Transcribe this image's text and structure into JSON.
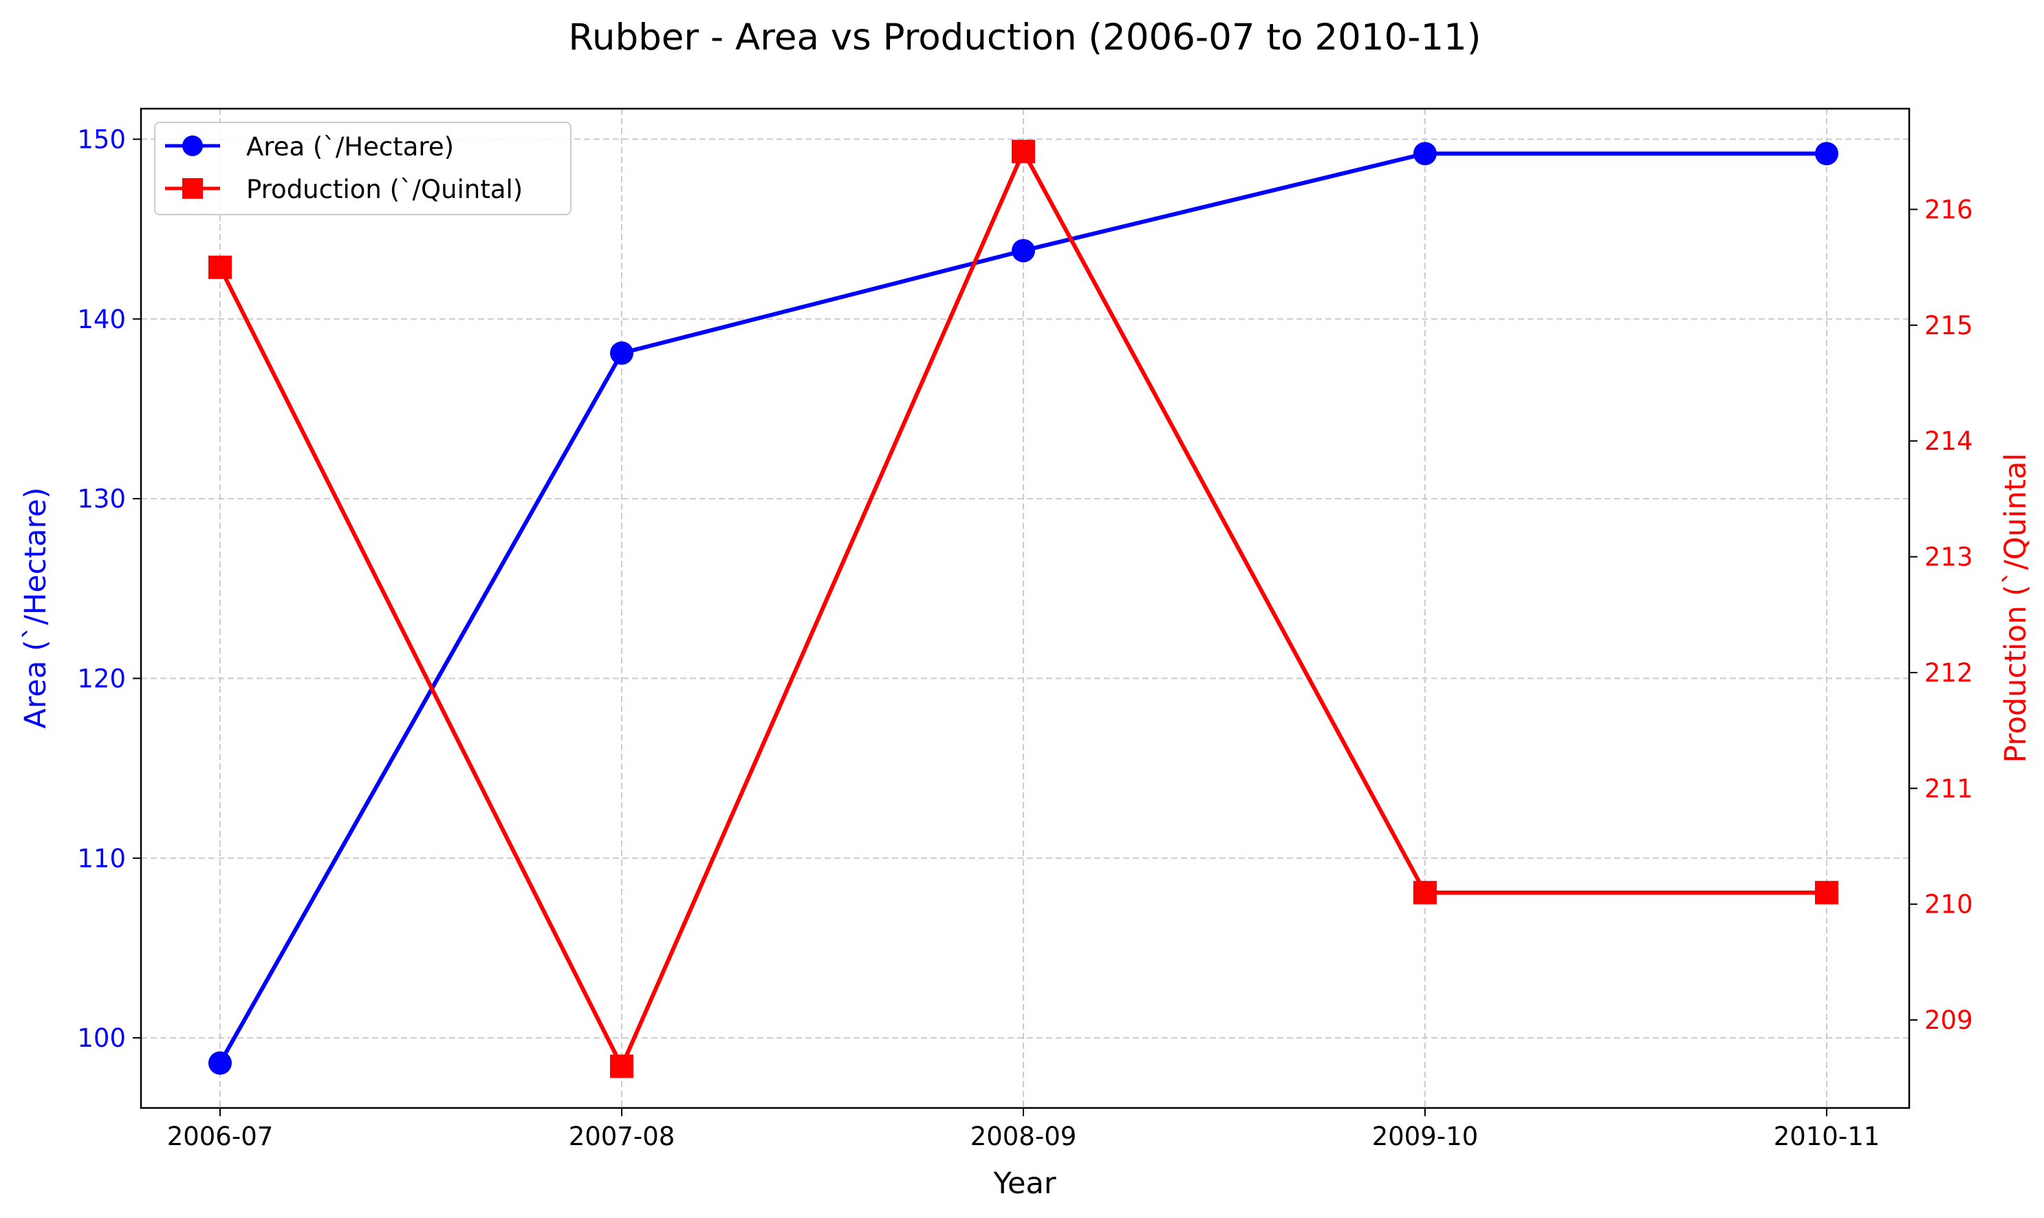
{
  "chart_data": {
    "type": "line",
    "title": "Rubber  - Area vs Production (2006-07 to 2010-11)",
    "xlabel": "Year",
    "categories": [
      "2006-07",
      "2007-08",
      "2008-09",
      "2009-10",
      "2010-11"
    ],
    "y_left": {
      "label": "Area (`/Hectare)",
      "ticks": [
        "100",
        "110",
        "120",
        "130",
        "140",
        "150"
      ],
      "range": [
        96.1,
        151.7
      ],
      "color": "#0000ff"
    },
    "y_right": {
      "label": "Production (`/Quintal",
      "ticks": [
        "209",
        "210",
        "211",
        "212",
        "213",
        "214",
        "215",
        "216"
      ],
      "range": [
        208.24,
        216.87
      ],
      "color": "#ff0000"
    },
    "series": [
      {
        "name": "Area (`/Hectare)",
        "axis": "left",
        "color": "#0000ff",
        "marker": "circle",
        "values": [
          98.6,
          138.1,
          143.8,
          149.2,
          149.2
        ]
      },
      {
        "name": "Production (`/Quintal)",
        "axis": "right",
        "color": "#ff0000",
        "marker": "square",
        "values": [
          215.5,
          208.6,
          216.5,
          210.1,
          210.1
        ]
      }
    ],
    "grid": true,
    "legend": "top-left"
  }
}
